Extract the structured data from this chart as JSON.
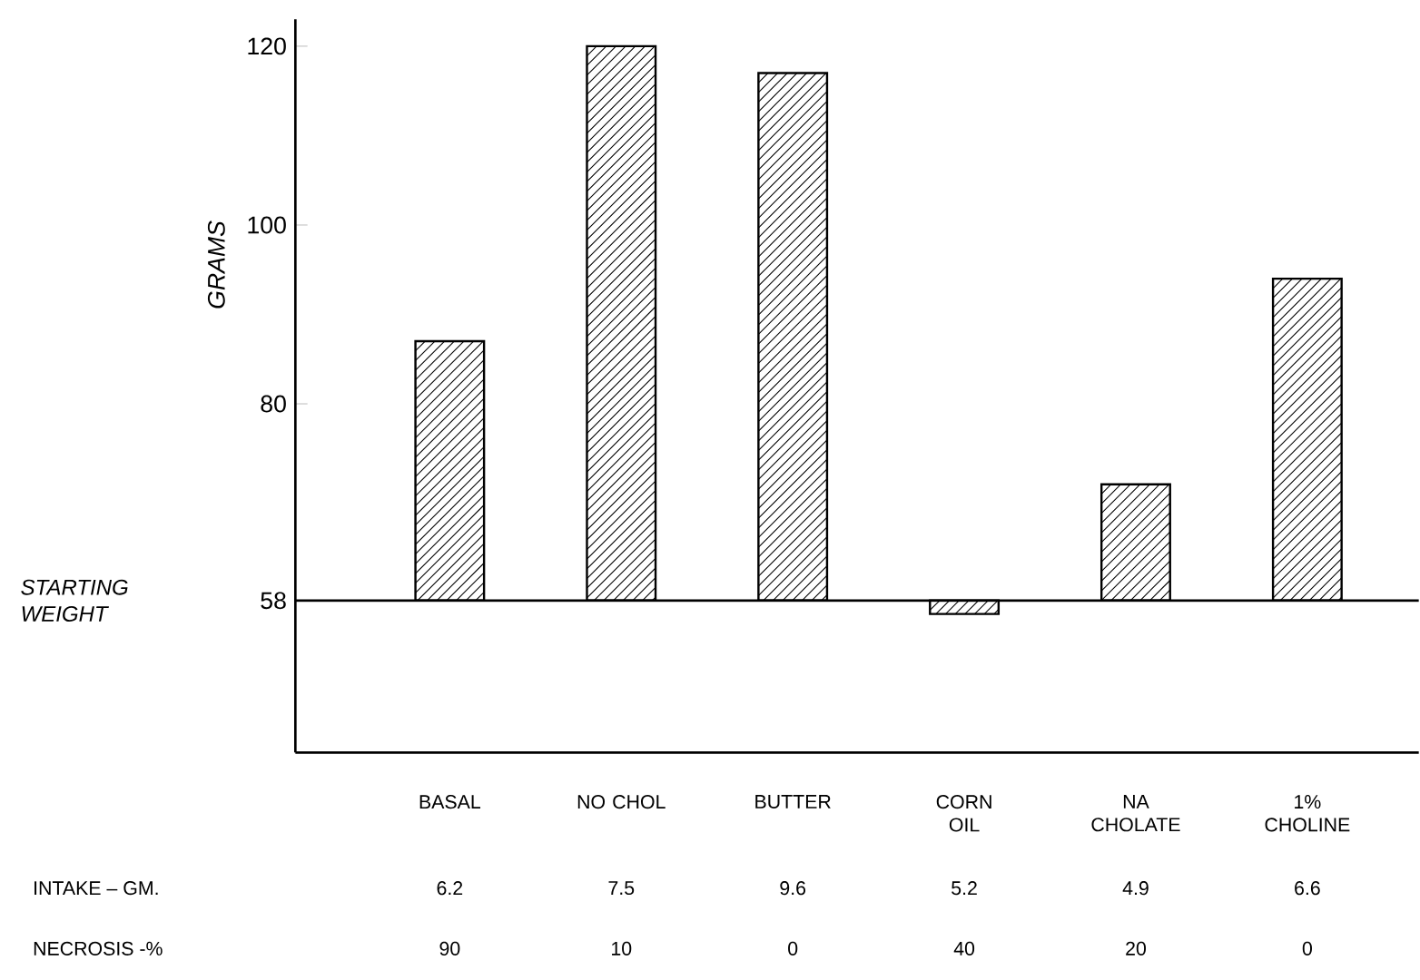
{
  "chart_data": {
    "type": "bar",
    "ylabel": "GRAMS",
    "categories": [
      "BASAL",
      "NO CHOL",
      "BUTTER",
      "CORN OIL",
      "NA CHOLATE",
      "1% CHOLINE"
    ],
    "base": [
      58,
      58,
      58,
      58,
      58,
      58
    ],
    "values": [
      29,
      62,
      59,
      -1.5,
      13,
      36
    ],
    "color": "#000000",
    "ylim": [
      41,
      123
    ],
    "yticks": [
      58,
      80,
      100,
      120
    ],
    "ref_lines": [
      {
        "axis": "y",
        "value": 58,
        "label": "STARTING WEIGHT"
      }
    ],
    "annotations": [
      "INTAKE – GM.",
      "6.2",
      "7.5",
      "9.6",
      "5.2",
      "4.9",
      "6.6",
      "NECROSIS -%",
      "90",
      "10",
      "0",
      "40",
      "20",
      "0"
    ],
    "grid": false
  }
}
